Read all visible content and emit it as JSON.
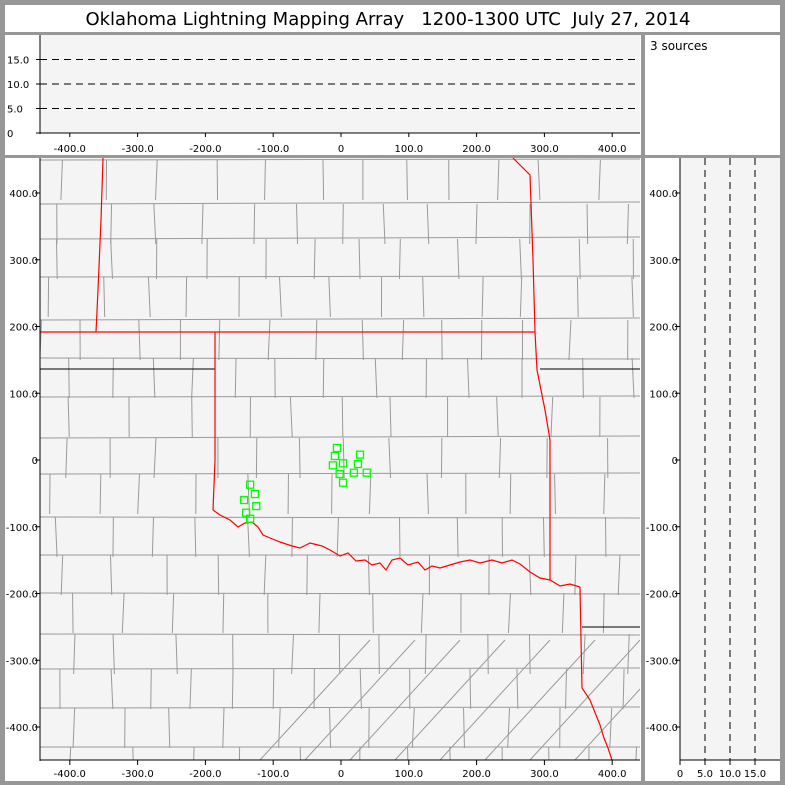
{
  "title": "Oklahoma Lightning Mapping Array   1200-1300 UTC  July 27, 2014",
  "legend_text": "3 sources",
  "colors": {
    "background": "#979797",
    "panel": "#ffffff",
    "plot": "#f4f4f4",
    "state_border": "#ff0000",
    "county_border": "#9a9a9a",
    "source_marker": "#00ff00"
  },
  "chart_data": [
    {
      "type": "scatter",
      "panel": "altitude-vs-east-west",
      "xlim": [
        -450,
        450
      ],
      "ylim": [
        0,
        20
      ],
      "x_ticks": [
        "-400.0",
        "-300.0",
        "-200.0",
        "-100.0",
        "0",
        "100.0",
        "200.0",
        "300.0",
        "400.0"
      ],
      "x_tick_values": [
        -400,
        -300,
        -200,
        -100,
        0,
        100,
        200,
        300,
        400
      ],
      "y_ticks": [
        "0",
        "5.0",
        "10.0",
        "15.0"
      ],
      "y_tick_values": [
        0,
        5,
        10,
        15
      ],
      "grid": "dashed horizontal at 5, 10, 15",
      "points": []
    },
    {
      "type": "scatter",
      "panel": "plan-view-map",
      "xlim": [
        -450,
        450
      ],
      "ylim": [
        -450,
        450
      ],
      "x_ticks": [
        "-400.0",
        "-300.0",
        "-200.0",
        "-100.0",
        "0",
        "100.0",
        "200.0",
        "300.0",
        "400.0"
      ],
      "x_tick_values": [
        -400,
        -300,
        -200,
        -100,
        0,
        100,
        200,
        300,
        400
      ],
      "y_ticks": [
        "400.0",
        "300.0",
        "200.0",
        "100.0",
        "0",
        "-100.0",
        "-200.0",
        "-300.0",
        "-400.0"
      ],
      "y_tick_values": [
        400,
        300,
        200,
        100,
        0,
        -100,
        -200,
        -300,
        -400
      ],
      "points": [
        {
          "x": -6,
          "y": 18
        },
        {
          "x": -9,
          "y": 6
        },
        {
          "x": 3,
          "y": -5
        },
        {
          "x": -12,
          "y": -8
        },
        {
          "x": 28,
          "y": 8
        },
        {
          "x": 25,
          "y": -6
        },
        {
          "x": -2,
          "y": -21
        },
        {
          "x": 19,
          "y": -19
        },
        {
          "x": 38,
          "y": -19
        },
        {
          "x": 3,
          "y": -34
        },
        {
          "x": -134,
          "y": -37
        },
        {
          "x": -127,
          "y": -51
        },
        {
          "x": -143,
          "y": -60
        },
        {
          "x": -125,
          "y": -69
        },
        {
          "x": -140,
          "y": -79
        },
        {
          "x": -134,
          "y": -88
        }
      ]
    },
    {
      "type": "scatter",
      "panel": "north-south-vs-altitude",
      "xlim": [
        0,
        20
      ],
      "ylim": [
        -450,
        450
      ],
      "x_ticks": [
        "0",
        "5.0",
        "10.0",
        "15.0"
      ],
      "x_tick_values": [
        0,
        5,
        10,
        15
      ],
      "y_ticks": [
        "400.0",
        "300.0",
        "200.0",
        "100.0",
        "0",
        "-100.0",
        "-200.0",
        "-300.0",
        "-400.0"
      ],
      "y_tick_values": [
        400,
        300,
        200,
        100,
        0,
        -100,
        -200,
        -300,
        -400
      ],
      "grid": "dashed vertical at 5, 10, 15",
      "points": []
    }
  ]
}
